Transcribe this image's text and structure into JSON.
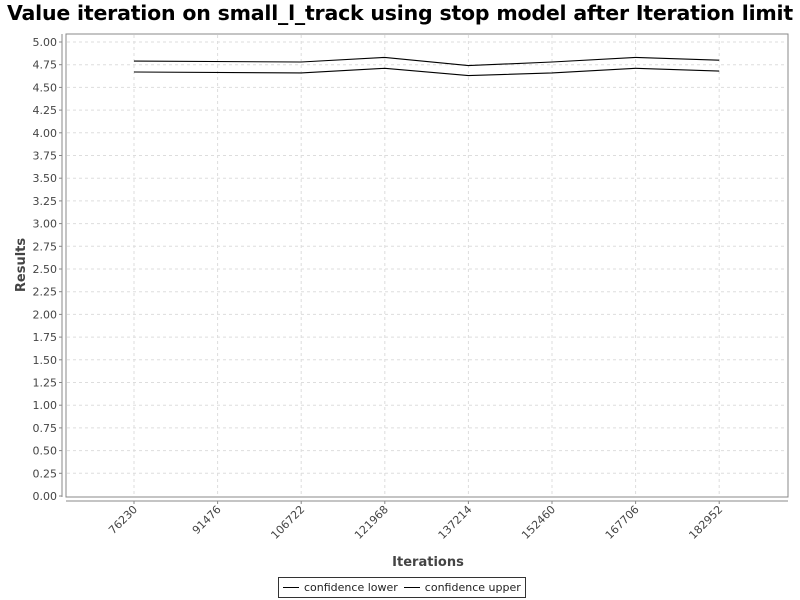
{
  "chart_data": {
    "type": "line",
    "title": "Value iteration on small_l_track using stop model after Iteration limit",
    "xlabel": "Iterations",
    "ylabel": "Results",
    "categories": [
      "76230",
      "91476",
      "106722",
      "121968",
      "137214",
      "152460",
      "167706",
      "182952"
    ],
    "series": [
      {
        "name": "confidence lower",
        "color": "#000000",
        "points": [
          [
            0,
            4.67
          ],
          [
            2,
            4.66
          ],
          [
            3,
            4.71
          ],
          [
            4,
            4.63
          ],
          [
            5,
            4.66
          ],
          [
            6,
            4.71
          ],
          [
            7,
            4.68
          ]
        ]
      },
      {
        "name": "confidence upper",
        "color": "#000000",
        "points": [
          [
            0,
            4.79
          ],
          [
            2,
            4.78
          ],
          [
            3,
            4.83
          ],
          [
            4,
            4.74
          ],
          [
            5,
            4.78
          ],
          [
            6,
            4.83
          ],
          [
            7,
            4.8
          ]
        ]
      }
    ],
    "ylim": [
      0,
      5
    ],
    "yticks": [
      "0.00",
      "0.25",
      "0.50",
      "0.75",
      "1.00",
      "1.25",
      "1.50",
      "1.75",
      "2.00",
      "2.25",
      "2.50",
      "2.75",
      "3.00",
      "3.25",
      "3.50",
      "3.75",
      "4.00",
      "4.25",
      "4.50",
      "4.75",
      "5.00"
    ],
    "grid": true,
    "legend_position": "bottom"
  }
}
